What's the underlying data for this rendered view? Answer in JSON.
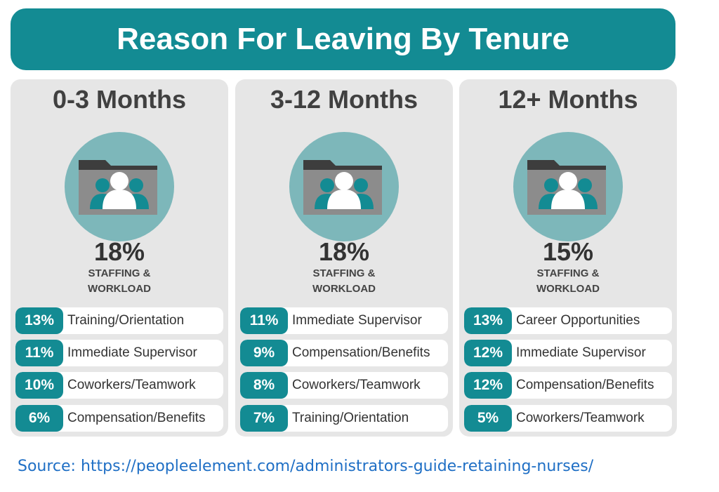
{
  "header": {
    "title": "Reason For Leaving By Tenure"
  },
  "columns": [
    {
      "tenure": "0-3 Months",
      "top": {
        "percent": "18%",
        "label_lines": [
          "STAFFING &",
          "WORKLOAD"
        ]
      },
      "items": [
        {
          "percent": "13%",
          "label": "Training/Orientation"
        },
        {
          "percent": "11%",
          "label": "Immediate Supervisor"
        },
        {
          "percent": "10%",
          "label": "Coworkers/Teamwork"
        },
        {
          "percent": "6%",
          "label": "Compensation/Benefits"
        }
      ]
    },
    {
      "tenure": "3-12 Months",
      "top": {
        "percent": "18%",
        "label_lines": [
          "STAFFING &",
          "WORKLOAD"
        ]
      },
      "items": [
        {
          "percent": "11%",
          "label": "Immediate Supervisor"
        },
        {
          "percent": "9%",
          "label": "Compensation/Benefits"
        },
        {
          "percent": "8%",
          "label": "Coworkers/Teamwork"
        },
        {
          "percent": "7%",
          "label": "Training/Orientation"
        }
      ]
    },
    {
      "tenure": "12+ Months",
      "top": {
        "percent": "15%",
        "label_lines": [
          "STAFFING &",
          "WORKLOAD"
        ]
      },
      "items": [
        {
          "percent": "13%",
          "label": "Career Opportunities"
        },
        {
          "percent": "12%",
          "label": "Immediate Supervisor"
        },
        {
          "percent": "12%",
          "label": "Compensation/Benefits"
        },
        {
          "percent": "5%",
          "label": "Coworkers/Teamwork"
        }
      ]
    }
  ],
  "source": "Source: https://peopleelement.com/administrators-guide-retaining-nurses/"
}
